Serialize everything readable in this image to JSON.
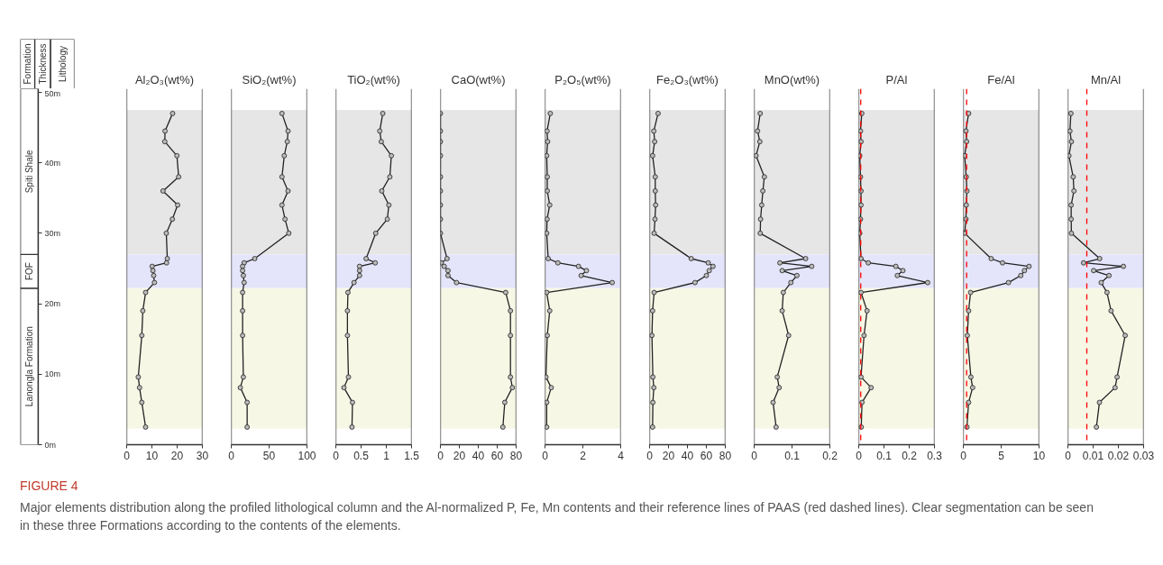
{
  "chart_data": [
    {
      "type": "bar",
      "stacked": true,
      "categories": [
        null
      ],
      "annotations": [
        "Formation",
        "Thickness",
        "Lithology"
      ],
      "ylim": [
        0,
        50.5
      ],
      "yticks": [
        {
          "value": 0,
          "label": "0m"
        },
        {
          "value": 10,
          "label": "10m"
        },
        {
          "value": 20,
          "label": "20m"
        },
        {
          "value": 30,
          "label": "30m"
        },
        {
          "value": 40,
          "label": "40m"
        },
        {
          "value": 50,
          "label": "50m"
        }
      ],
      "tick_labels": "y",
      "series": [
        {
          "name": "Lanongla Formation",
          "color": "#ffffff",
          "values": [
            22.2
          ]
        },
        {
          "name": "FOF",
          "color": "#ffffff",
          "values": [
            4.8
          ]
        },
        {
          "name": "Spiti Shale",
          "color": "#ffffff",
          "values": [
            23.5
          ]
        }
      ]
    },
    {
      "type": "line",
      "title": "Al₂O₃(wt%)",
      "xlim": [
        0,
        30
      ],
      "xticks": [
        0,
        10,
        20,
        30
      ],
      "ylim": [
        0,
        50.5
      ],
      "tick_labels": "x",
      "marker": "circle",
      "line_style": "solid",
      "bands": [
        {
          "axis": "y",
          "from": 27,
          "to": 47.5,
          "color": "#e6e6e6"
        },
        {
          "axis": "y",
          "from": 22.2,
          "to": 27,
          "color": "#e4e4fa"
        },
        {
          "axis": "y",
          "from": 2.3,
          "to": 22.2,
          "color": "#f7f7e6"
        }
      ],
      "series": [
        {
          "color": "#222222",
          "x": [
            18.2,
            15.2,
            15.1,
            19.9,
            20.6,
            14.4,
            20.2,
            18.1,
            15.7,
            16.1,
            15.8,
            10.1,
            10.4,
            10.7,
            11.0,
            7.5,
            6.4,
            6.0,
            4.6,
            5.1,
            6.0,
            7.5
          ],
          "values": [
            47.0,
            44.5,
            43.0,
            41.0,
            38.0,
            36.0,
            34.0,
            32.0,
            30.0,
            26.4,
            25.8,
            25.3,
            24.7,
            24.0,
            23.0,
            21.6,
            19.0,
            15.5,
            9.6,
            8.1,
            6.0,
            2.5
          ]
        }
      ]
    },
    {
      "type": "line",
      "title": "SiO₂(wt%)",
      "xlim": [
        0,
        100
      ],
      "xticks": [
        0,
        50,
        100
      ],
      "ylim": [
        0,
        50.5
      ],
      "tick_labels": "x",
      "marker": "circle",
      "line_style": "solid",
      "bands": [
        {
          "axis": "y",
          "from": 27,
          "to": 47.5,
          "color": "#e6e6e6"
        },
        {
          "axis": "y",
          "from": 22.2,
          "to": 27,
          "color": "#e4e4fa"
        },
        {
          "axis": "y",
          "from": 2.3,
          "to": 22.2,
          "color": "#f7f7e6"
        }
      ],
      "series": [
        {
          "color": "#222222",
          "x": [
            67,
            75,
            74,
            70,
            67,
            75,
            67,
            71,
            76,
            31,
            17,
            15,
            15,
            16,
            17,
            15,
            15,
            15,
            16,
            12,
            21,
            21
          ],
          "values": [
            47.0,
            44.5,
            43.0,
            41.0,
            38.0,
            36.0,
            34.0,
            32.0,
            30.0,
            26.4,
            25.8,
            25.3,
            24.7,
            24.0,
            23.0,
            21.6,
            19.0,
            15.5,
            9.6,
            8.1,
            6.0,
            2.5
          ]
        }
      ]
    },
    {
      "type": "line",
      "title": "TiO₂(wt%)",
      "xlim": [
        0,
        1.5
      ],
      "xticks": [
        0,
        0.5,
        1,
        1.5
      ],
      "ylim": [
        0,
        50.5
      ],
      "tick_labels": "x",
      "marker": "circle",
      "line_style": "solid",
      "bands": [
        {
          "axis": "y",
          "from": 27,
          "to": 47.5,
          "color": "#e6e6e6"
        },
        {
          "axis": "y",
          "from": 22.2,
          "to": 27,
          "color": "#e4e4fa"
        },
        {
          "axis": "y",
          "from": 2.3,
          "to": 22.2,
          "color": "#f7f7e6"
        }
      ],
      "series": [
        {
          "color": "#222222",
          "x": [
            0.93,
            0.87,
            0.9,
            1.1,
            1.07,
            0.91,
            1.05,
            1.02,
            0.79,
            0.6,
            0.78,
            0.47,
            0.47,
            0.47,
            0.36,
            0.24,
            0.23,
            0.23,
            0.25,
            0.16,
            0.33,
            0.32
          ],
          "values": [
            47.0,
            44.5,
            43.0,
            41.0,
            38.0,
            36.0,
            34.0,
            32.0,
            30.0,
            26.4,
            25.8,
            25.3,
            24.7,
            24.0,
            23.0,
            21.6,
            19.0,
            15.5,
            9.6,
            8.1,
            6.0,
            2.5
          ]
        }
      ]
    },
    {
      "type": "line",
      "title": "CaO(wt%)",
      "xlim": [
        0,
        80
      ],
      "xticks": [
        0,
        20,
        40,
        60,
        80
      ],
      "ylim": [
        0,
        50.5
      ],
      "tick_labels": "x",
      "marker": "circle",
      "line_style": "solid",
      "bands": [
        {
          "axis": "y",
          "from": 27,
          "to": 47.5,
          "color": "#e6e6e6"
        },
        {
          "axis": "y",
          "from": 22.2,
          "to": 27,
          "color": "#e4e4fa"
        },
        {
          "axis": "y",
          "from": 2.3,
          "to": 22.2,
          "color": "#f7f7e6"
        }
      ],
      "series": [
        {
          "color": "#222222",
          "x": [
            0,
            0,
            0,
            0,
            0,
            0,
            0,
            0,
            0,
            7,
            1,
            4,
            8,
            8,
            17,
            69,
            74,
            74,
            74,
            76,
            68,
            66
          ],
          "values": [
            47.0,
            44.5,
            43.0,
            41.0,
            38.0,
            36.0,
            34.0,
            32.0,
            30.0,
            26.4,
            25.8,
            25.3,
            24.7,
            24.0,
            23.0,
            21.6,
            19.0,
            15.5,
            9.6,
            8.1,
            6.0,
            2.5
          ]
        }
      ]
    },
    {
      "type": "line",
      "title": "P₂O₅(wt%)",
      "xlim": [
        0,
        4
      ],
      "xticks": [
        0,
        2,
        4
      ],
      "ylim": [
        0,
        50.5
      ],
      "tick_labels": "x",
      "marker": "circle",
      "line_style": "solid",
      "bands": [
        {
          "axis": "y",
          "from": 27,
          "to": 47.5,
          "color": "#e6e6e6"
        },
        {
          "axis": "y",
          "from": 22.2,
          "to": 27,
          "color": "#e4e4fa"
        },
        {
          "axis": "y",
          "from": 2.3,
          "to": 22.2,
          "color": "#f7f7e6"
        }
      ],
      "series": [
        {
          "color": "#222222",
          "x": [
            0.28,
            0.11,
            0.14,
            0.09,
            0.12,
            0.12,
            0.25,
            0.11,
            0.09,
            0.17,
            0.68,
            1.77,
            2.19,
            1.91,
            3.55,
            0.09,
            0.25,
            0.12,
            0.05,
            0.33,
            0.09,
            0.09
          ],
          "values": [
            47.0,
            44.5,
            43.0,
            41.0,
            38.0,
            36.0,
            34.0,
            32.0,
            30.0,
            26.4,
            25.8,
            25.3,
            24.7,
            24.0,
            23.0,
            21.6,
            19.0,
            15.5,
            9.6,
            8.1,
            6.0,
            2.5
          ]
        }
      ]
    },
    {
      "type": "line",
      "title": "Fe₂O₃(wt%)",
      "xlim": [
        0,
        80
      ],
      "xticks": [
        0,
        20,
        40,
        60,
        80
      ],
      "ylim": [
        0,
        50.5
      ],
      "tick_labels": "x",
      "marker": "circle",
      "line_style": "solid",
      "bands": [
        {
          "axis": "y",
          "from": 27,
          "to": 47.5,
          "color": "#e6e6e6"
        },
        {
          "axis": "y",
          "from": 22.2,
          "to": 27,
          "color": "#e4e4fa"
        },
        {
          "axis": "y",
          "from": 2.3,
          "to": 22.2,
          "color": "#f7f7e6"
        }
      ],
      "series": [
        {
          "color": "#222222",
          "x": [
            9,
            4.5,
            5.4,
            3.2,
            6,
            6,
            6.4,
            5.7,
            4.8,
            44,
            62,
            67,
            63,
            60,
            48,
            4.8,
            3.2,
            2.5,
            3.5,
            4.5,
            3.5,
            3.2
          ],
          "values": [
            47.0,
            44.5,
            43.0,
            41.0,
            38.0,
            36.0,
            34.0,
            32.0,
            30.0,
            26.4,
            25.8,
            25.3,
            24.7,
            24.0,
            23.0,
            21.6,
            19.0,
            15.5,
            9.6,
            8.1,
            6.0,
            2.5
          ]
        }
      ]
    },
    {
      "type": "line",
      "title": "MnO(wt%)",
      "xlim": [
        0,
        0.2
      ],
      "xticks": [
        0,
        0.1,
        0.2
      ],
      "ylim": [
        0,
        50.5
      ],
      "tick_labels": "x",
      "marker": "circle",
      "line_style": "solid",
      "bands": [
        {
          "axis": "y",
          "from": 27,
          "to": 47.5,
          "color": "#e6e6e6"
        },
        {
          "axis": "y",
          "from": 22.2,
          "to": 27,
          "color": "#e4e4fa"
        },
        {
          "axis": "y",
          "from": 2.3,
          "to": 22.2,
          "color": "#f7f7e6"
        }
      ],
      "series": [
        {
          "color": "#222222",
          "x": [
            0.016,
            0.009,
            0.015,
            0.005,
            0.027,
            0.023,
            0.02,
            0.017,
            0.016,
            0.136,
            0.068,
            0.152,
            0.074,
            0.113,
            0.097,
            0.077,
            0.074,
            0.091,
            0.061,
            0.066,
            0.05,
            0.058
          ],
          "values": [
            47.0,
            44.5,
            43.0,
            41.0,
            38.0,
            36.0,
            34.0,
            32.0,
            30.0,
            26.4,
            25.8,
            25.3,
            24.7,
            24.0,
            23.0,
            21.6,
            19.0,
            15.5,
            9.6,
            8.1,
            6.0,
            2.5
          ]
        }
      ]
    },
    {
      "type": "line",
      "title": "P/Al",
      "xlim": [
        0,
        0.3
      ],
      "xticks": [
        0,
        0.1,
        0.2,
        0.3
      ],
      "ylim": [
        0,
        50.5
      ],
      "tick_labels": "x",
      "marker": "circle",
      "line_style": "solid",
      "bands": [
        {
          "axis": "y",
          "from": 27,
          "to": 47.5,
          "color": "#e6e6e6"
        },
        {
          "axis": "y",
          "from": 22.2,
          "to": 27,
          "color": "#e4e4fa"
        },
        {
          "axis": "y",
          "from": 2.3,
          "to": 22.2,
          "color": "#f7f7e6"
        }
      ],
      "ref_lines": [
        {
          "axis": "x",
          "value": 0.008,
          "color": "#ff0000",
          "line_style": "dashed"
        }
      ],
      "series": [
        {
          "color": "#222222",
          "x": [
            0.012,
            0.007,
            0.009,
            0.004,
            0.007,
            0.009,
            0.009,
            0.007,
            0.004,
            0.009,
            0.038,
            0.147,
            0.175,
            0.153,
            0.273,
            0.009,
            0.033,
            0.021,
            0.009,
            0.049,
            0.013,
            0.01
          ],
          "values": [
            47.0,
            44.5,
            43.0,
            41.0,
            38.0,
            36.0,
            34.0,
            32.0,
            30.0,
            26.4,
            25.8,
            25.3,
            24.7,
            24.0,
            23.0,
            21.6,
            19.0,
            15.5,
            9.6,
            8.1,
            6.0,
            2.5
          ]
        }
      ]
    },
    {
      "type": "line",
      "title": "Fe/Al",
      "xlim": [
        0,
        10
      ],
      "xticks": [
        0,
        5,
        10
      ],
      "ylim": [
        0,
        50.5
      ],
      "tick_labels": "x",
      "marker": "circle",
      "line_style": "solid",
      "bands": [
        {
          "axis": "y",
          "from": 27,
          "to": 47.5,
          "color": "#e6e6e6"
        },
        {
          "axis": "y",
          "from": 22.2,
          "to": 27,
          "color": "#e4e4fa"
        },
        {
          "axis": "y",
          "from": 2.3,
          "to": 22.2,
          "color": "#f7f7e6"
        }
      ],
      "ref_lines": [
        {
          "axis": "x",
          "value": 0.44,
          "color": "#ff0000",
          "line_style": "dashed"
        }
      ],
      "series": [
        {
          "color": "#222222",
          "x": [
            0.7,
            0.35,
            0.44,
            0.18,
            0.39,
            0.48,
            0.39,
            0.35,
            0.18,
            3.68,
            5.18,
            8.68,
            8.07,
            7.59,
            5.96,
            0.96,
            0.7,
            0.53,
            1.0,
            1.23,
            0.7,
            0.48
          ],
          "values": [
            47.0,
            44.5,
            43.0,
            41.0,
            38.0,
            36.0,
            34.0,
            32.0,
            30.0,
            26.4,
            25.8,
            25.3,
            24.7,
            24.0,
            23.0,
            21.6,
            19.0,
            15.5,
            9.6,
            8.1,
            6.0,
            2.5
          ]
        }
      ]
    },
    {
      "type": "line",
      "title": "Mn/Al",
      "xlim": [
        0,
        0.03
      ],
      "xticks": [
        0,
        0.01,
        0.02,
        0.03
      ],
      "ylim": [
        0,
        50.5
      ],
      "tick_labels": "x",
      "marker": "circle",
      "line_style": "solid",
      "bands": [
        {
          "axis": "y",
          "from": 27,
          "to": 47.5,
          "color": "#e6e6e6"
        },
        {
          "axis": "y",
          "from": 22.2,
          "to": 27,
          "color": "#e4e4fa"
        },
        {
          "axis": "y",
          "from": 2.3,
          "to": 22.2,
          "color": "#f7f7e6"
        }
      ],
      "ref_lines": [
        {
          "axis": "x",
          "value": 0.0075,
          "color": "#ff0000",
          "line_style": "dashed"
        }
      ],
      "series": [
        {
          "color": "#222222",
          "x": [
            0.0012,
            0.0008,
            0.0014,
            0.0004,
            0.0021,
            0.0024,
            0.0013,
            0.0013,
            0.0014,
            0.0126,
            0.0062,
            0.022,
            0.0102,
            0.0163,
            0.0132,
            0.0155,
            0.0171,
            0.0227,
            0.0195,
            0.0187,
            0.0125,
            0.0113
          ],
          "values": [
            47.0,
            44.5,
            43.0,
            41.0,
            38.0,
            36.0,
            34.0,
            32.0,
            30.0,
            26.4,
            25.8,
            25.3,
            24.7,
            24.0,
            23.0,
            21.6,
            19.0,
            15.5,
            9.6,
            8.1,
            6.0,
            2.5
          ]
        }
      ]
    },
    {
      "type": "other",
      "title": "FIGURE 4",
      "annotations": [
        "Major elements distribution along the profiled lithological column and the Al-normalized P, Fe, Mn contents and their reference lines of PAAS (red dashed lines). Clear segmentation can be seen in these three Formations according to the contents of the elements."
      ]
    }
  ]
}
